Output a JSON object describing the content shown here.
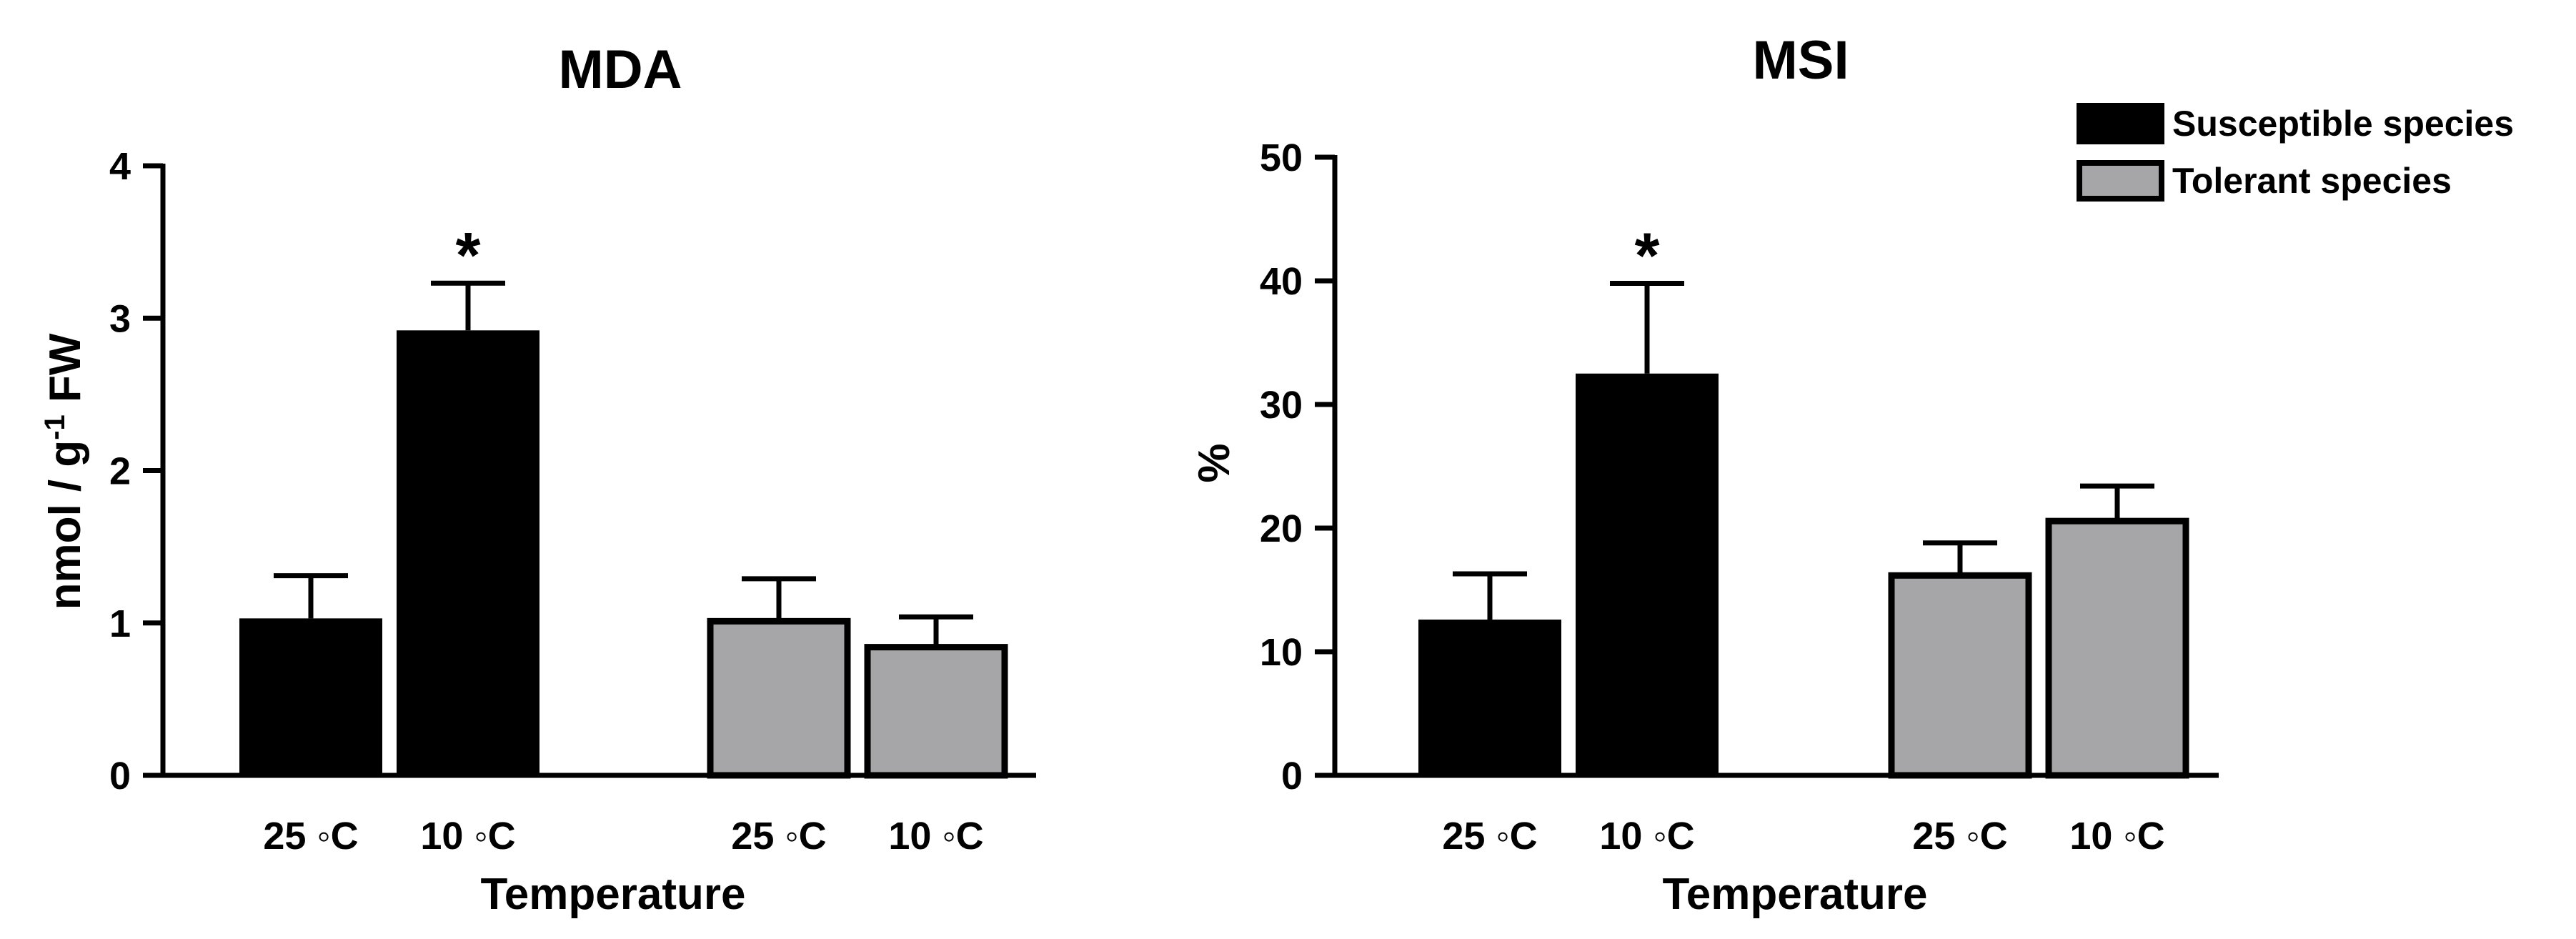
{
  "chart_data": [
    {
      "type": "bar",
      "title": "MDA",
      "xlabel": "Temperature",
      "ylabel": "nmol / g",
      "ylabel_sup": "-1",
      "ylabel_suffix": " FW",
      "ylim": [
        0,
        4
      ],
      "yticks": [
        0,
        1,
        2,
        3,
        4
      ],
      "series": [
        {
          "name": "Susceptible species",
          "color": "#000000",
          "categories": [
            "25 ◦C",
            "10 ◦C"
          ],
          "values": [
            1.03,
            2.92
          ],
          "errors": [
            0.28,
            0.31
          ],
          "significance": [
            "",
            "*"
          ]
        },
        {
          "name": "Tolerant species",
          "color": "#a6a6a8",
          "categories": [
            "25 ◦C",
            "10 ◦C"
          ],
          "values": [
            1.03,
            0.86
          ],
          "errors": [
            0.26,
            0.18
          ],
          "significance": [
            "",
            ""
          ]
        }
      ]
    },
    {
      "type": "bar",
      "title": "MSI",
      "xlabel": "Temperature",
      "ylabel": "%",
      "ylim": [
        0,
        50
      ],
      "yticks": [
        0,
        10,
        20,
        30,
        40,
        50
      ],
      "series": [
        {
          "name": "Susceptible species",
          "color": "#000000",
          "categories": [
            "25 ◦C",
            "10 ◦C"
          ],
          "values": [
            12.6,
            32.5
          ],
          "errors": [
            3.7,
            7.3
          ],
          "significance": [
            "",
            "*"
          ]
        },
        {
          "name": "Tolerant species",
          "color": "#a6a6a8",
          "categories": [
            "25 ◦C",
            "10 ◦C"
          ],
          "values": [
            16.4,
            20.8
          ],
          "errors": [
            2.4,
            2.6
          ],
          "significance": [
            "",
            ""
          ]
        }
      ]
    }
  ],
  "legend": {
    "items": [
      {
        "label": "Susceptible species",
        "color": "#000000"
      },
      {
        "label": "Tolerant species",
        "color": "#a6a6a8"
      }
    ]
  }
}
